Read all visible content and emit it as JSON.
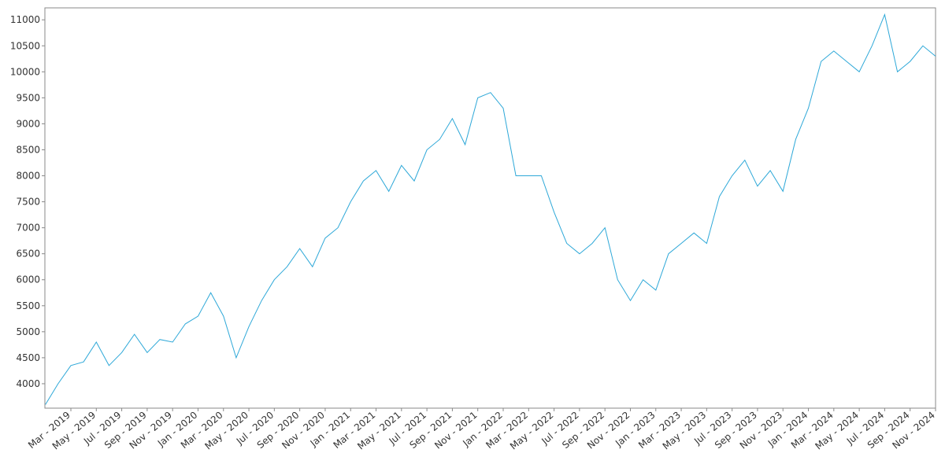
{
  "chart_data": {
    "type": "line",
    "categories": [
      null,
      null,
      "Mar - 2019",
      null,
      "May - 2019",
      null,
      "Jul - 2019",
      null,
      "Sep - 2019",
      null,
      "Nov - 2019",
      null,
      "Jan - 2020",
      null,
      "Mar - 2020",
      null,
      "May - 2020",
      null,
      "Jul - 2020",
      null,
      "Sep - 2020",
      null,
      "Nov - 2020",
      null,
      "Jan - 2021",
      null,
      "Mar - 2021",
      null,
      "May - 2021",
      null,
      "Jul - 2021",
      null,
      "Sep - 2021",
      null,
      "Nov - 2021",
      null,
      "Jan - 2022",
      null,
      "Mar - 2022",
      null,
      "May - 2022",
      null,
      "Jul - 2022",
      null,
      "Sep - 2022",
      null,
      "Nov - 2022",
      null,
      "Jan - 2023",
      null,
      "Mar - 2023",
      null,
      "May - 2023",
      null,
      "Jul - 2023",
      null,
      "Sep - 2023",
      null,
      "Nov - 2023",
      null,
      "Jan - 2024",
      null,
      "Mar - 2024",
      null,
      "May - 2024",
      null,
      "Jul - 2024",
      null,
      "Sep - 2024",
      null,
      "Nov - 2024"
    ],
    "values": [
      3600,
      4000,
      4350,
      4420,
      4800,
      4350,
      4600,
      4950,
      4600,
      4850,
      4800,
      5150,
      5300,
      5750,
      5300,
      4500,
      5100,
      5600,
      6000,
      6250,
      6600,
      6250,
      6800,
      7000,
      7500,
      7900,
      8100,
      7700,
      8200,
      7900,
      8500,
      8700,
      9100,
      8600,
      9500,
      9600,
      9300,
      8000,
      8000,
      8000,
      7300,
      6700,
      6500,
      6700,
      7000,
      6000,
      5600,
      6000,
      5800,
      6500,
      6700,
      6900,
      6700,
      7600,
      8000,
      8300,
      7800,
      8100,
      7700,
      8700,
      9300,
      10200,
      10400,
      10200,
      10000,
      10500,
      11100,
      10000,
      10200,
      10500,
      10300
    ],
    "color": "#2ea8d8",
    "ylim": [
      3530,
      11230
    ],
    "yticks": [
      4000,
      4500,
      5000,
      5500,
      6000,
      6500,
      7000,
      7500,
      8000,
      8500,
      9000,
      9500,
      10000,
      10500,
      11000
    ]
  }
}
